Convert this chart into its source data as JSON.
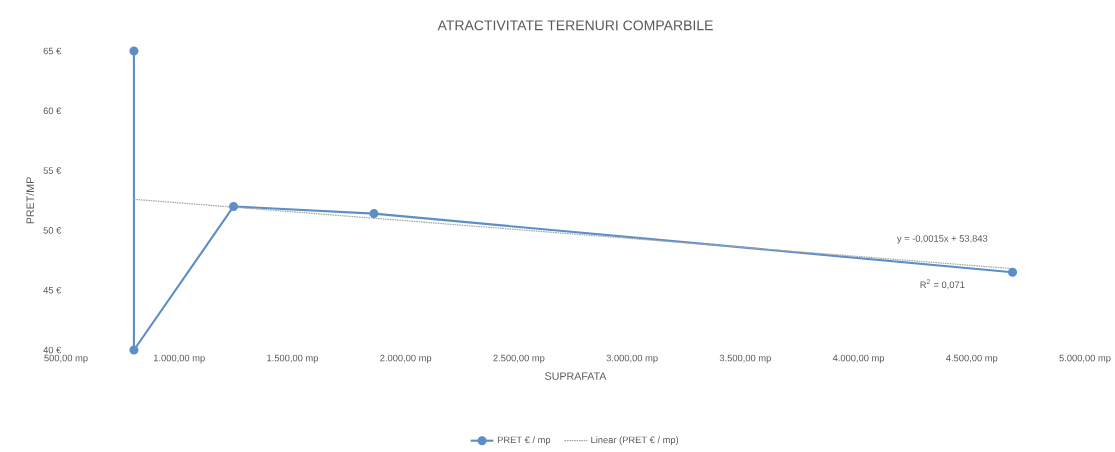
{
  "chart_data": {
    "type": "line",
    "title": "ATRACTIVITATE TERENURI COMPARBILE",
    "xlabel": "SUPRAFATA",
    "ylabel": "PRET/MP",
    "series": [
      {
        "name": "PRET € / mp",
        "color": "#5b8fc6",
        "x": [
          800,
          800,
          1240,
          1860,
          4680
        ],
        "values": [
          65,
          40,
          52,
          51.4,
          46.5
        ],
        "marker": "circle",
        "line_style": "solid"
      },
      {
        "name": "Linear (PRET € / mp)",
        "type": "line",
        "color": "#a6a6a6",
        "x": [
          800,
          4680
        ],
        "values": [
          52.6,
          46.8
        ],
        "marker": "none",
        "line_style": "dotted"
      }
    ],
    "xlim": [
      500,
      5000
    ],
    "ylim": [
      40,
      65
    ],
    "xticks": [
      {
        "value": 500,
        "label": "500,00 mp"
      },
      {
        "value": 1000,
        "label": "1.000,00 mp"
      },
      {
        "value": 1500,
        "label": "1.500,00 mp"
      },
      {
        "value": 2000,
        "label": "2.000,00 mp"
      },
      {
        "value": 2500,
        "label": "2.500,00 mp"
      },
      {
        "value": 3000,
        "label": "3.000,00 mp"
      },
      {
        "value": 3500,
        "label": "3.500,00 mp"
      },
      {
        "value": 4000,
        "label": "4.000,00 mp"
      },
      {
        "value": 4500,
        "label": "4.500,00 mp"
      },
      {
        "value": 5000,
        "label": "5.000,00 mp"
      }
    ],
    "yticks": [
      {
        "value": 40,
        "label": "40 €"
      },
      {
        "value": 45,
        "label": "45 €"
      },
      {
        "value": 50,
        "label": "50 €"
      },
      {
        "value": 55,
        "label": "55 €"
      },
      {
        "value": 60,
        "label": "60 €"
      },
      {
        "value": 65,
        "label": "65 €"
      }
    ],
    "annotations": [
      "y = -0,0015x + 53,843",
      "R$^{2}$ = 0,071"
    ],
    "grid": false,
    "legend": "bottom"
  }
}
